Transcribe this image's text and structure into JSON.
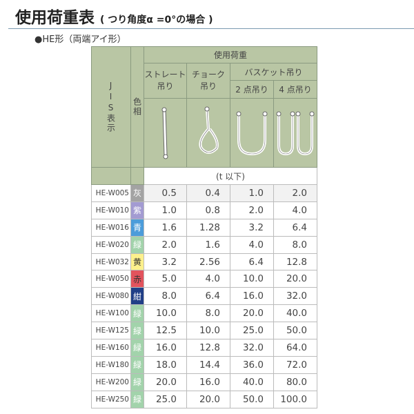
{
  "title": "使用荷重表",
  "title_note": "( つり角度α =0°の場合 )",
  "subtitle": "●HE形（両端アイ形）",
  "header": {
    "jis": "JIS表示",
    "color": "色相",
    "load": "使用荷重",
    "straight": "ストレート吊り",
    "choke": "チョーク吊り",
    "basket": "バスケット吊り",
    "two_point": "2 点吊り",
    "four_point": "4 点吊り",
    "unit": "(t 以下)"
  },
  "rows": [
    {
      "code": "HE-W005",
      "color": "灰",
      "hex": "#a3a3a3",
      "text": "#ffffff",
      "v": [
        "0.5",
        "0.4",
        "1.0",
        "2.0"
      ]
    },
    {
      "code": "HE-W010",
      "color": "紫",
      "hex": "#a39bd2",
      "text": "#ffffff",
      "v": [
        "1.0",
        "0.8",
        "2.0",
        "4.0"
      ]
    },
    {
      "code": "HE-W016",
      "color": "青",
      "hex": "#4c9cda",
      "text": "#ffffff",
      "v": [
        "1.6",
        "1.28",
        "3.2",
        "6.4"
      ]
    },
    {
      "code": "HE-W020",
      "color": "緑",
      "hex": "#a2d3ab",
      "text": "#ffffff",
      "v": [
        "2.0",
        "1.6",
        "4.0",
        "8.0"
      ]
    },
    {
      "code": "HE-W032",
      "color": "黄",
      "hex": "#fdf08c",
      "text": "#333333",
      "v": [
        "3.2",
        "2.56",
        "6.4",
        "12.8"
      ]
    },
    {
      "code": "HE-W050",
      "color": "赤",
      "hex": "#e2535d",
      "text": "#333333",
      "v": [
        "5.0",
        "4.0",
        "10.0",
        "20.0"
      ]
    },
    {
      "code": "HE-W080",
      "color": "紺",
      "hex": "#213f87",
      "text": "#ffffff",
      "v": [
        "8.0",
        "6.4",
        "16.0",
        "32.0"
      ]
    },
    {
      "code": "HE-W100",
      "color": "緑",
      "hex": "#a2d3ab",
      "text": "#ffffff",
      "v": [
        "10.0",
        "8.0",
        "20.0",
        "40.0"
      ]
    },
    {
      "code": "HE-W125",
      "color": "緑",
      "hex": "#a2d3ab",
      "text": "#ffffff",
      "v": [
        "12.5",
        "10.0",
        "25.0",
        "50.0"
      ]
    },
    {
      "code": "HE-W160",
      "color": "緑",
      "hex": "#a2d3ab",
      "text": "#ffffff",
      "v": [
        "16.0",
        "12.8",
        "32.0",
        "64.0"
      ]
    },
    {
      "code": "HE-W180",
      "color": "緑",
      "hex": "#a2d3ab",
      "text": "#ffffff",
      "v": [
        "18.0",
        "14.4",
        "36.0",
        "72.0"
      ]
    },
    {
      "code": "HE-W200",
      "color": "緑",
      "hex": "#a2d3ab",
      "text": "#ffffff",
      "v": [
        "20.0",
        "16.0",
        "40.0",
        "80.0"
      ]
    },
    {
      "code": "HE-W250",
      "color": "緑",
      "hex": "#a2d3ab",
      "text": "#ffffff",
      "v": [
        "25.0",
        "20.0",
        "50.0",
        "100.0"
      ]
    }
  ]
}
